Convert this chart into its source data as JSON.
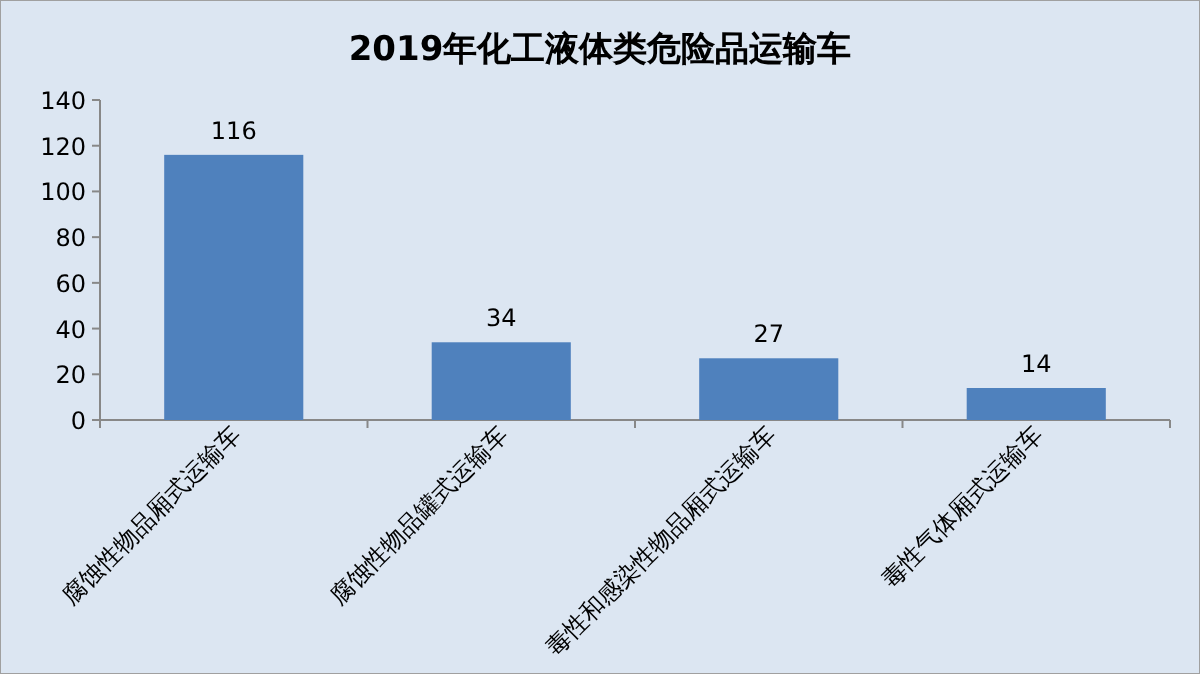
{
  "chart_data": {
    "type": "bar",
    "title": "2019年化工液体类危险品运输车",
    "categories": [
      "腐蚀性物品厢式运输车",
      "腐蚀性物品罐式运输车",
      "毒性和感染性物品厢式运输车",
      "毒性气体厢式运输车"
    ],
    "values": [
      116,
      34,
      27,
      14
    ],
    "color": "#4f81bd",
    "ylim": [
      0,
      140
    ],
    "yticks": [
      0,
      20,
      40,
      60,
      80,
      100,
      120,
      140
    ],
    "data_labels": true
  }
}
